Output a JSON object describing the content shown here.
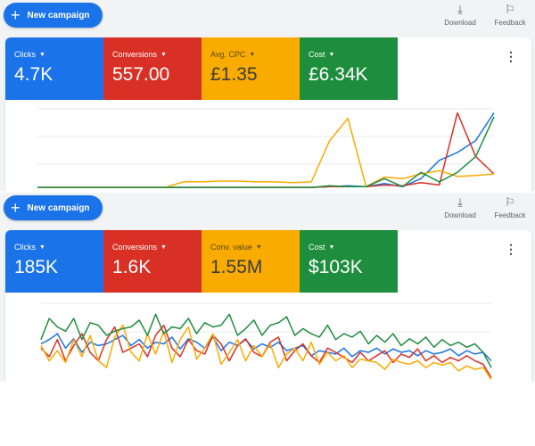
{
  "panels": [
    {
      "new_campaign": "New campaign",
      "download": "Download",
      "feedback": "Feedback",
      "metrics": [
        {
          "label": "Clicks",
          "value": "4.7K",
          "color": "#1a73e8"
        },
        {
          "label": "Conversions",
          "value": "557.00",
          "color": "#d93025"
        },
        {
          "label": "Avg. CPC",
          "value": "£1.35",
          "color": "#f9ab00"
        },
        {
          "label": "Cost",
          "value": "£6.34K",
          "color": "#1e8e3e"
        }
      ],
      "chart_data": {
        "type": "line",
        "x": [
          0,
          1,
          2,
          3,
          4,
          5,
          6,
          7,
          8,
          9,
          10,
          11,
          12,
          13,
          14,
          15,
          16,
          17,
          18,
          19,
          20,
          21,
          22,
          23,
          24,
          25
        ],
        "grid": true,
        "series": [
          {
            "color": "#1a73e8",
            "values": [
              1,
              1,
              1,
              1,
              1,
              1,
              1,
              1,
              1,
              1,
              1,
              1,
              1,
              1,
              1,
              1,
              2,
              3,
              2,
              6,
              2,
              12,
              35,
              45,
              60,
              95
            ]
          },
          {
            "color": "#d93025",
            "values": [
              1,
              1,
              1,
              1,
              1,
              1,
              1,
              1,
              1,
              1,
              1,
              1,
              1,
              1,
              1,
              1,
              2,
              2,
              2,
              4,
              3,
              7,
              4,
              95,
              40,
              18
            ]
          },
          {
            "color": "#f9ab00",
            "values": [
              1,
              1,
              1,
              1,
              1,
              1,
              1,
              1,
              8,
              8,
              9,
              9,
              8,
              8,
              7,
              8,
              60,
              88,
              2,
              14,
              12,
              18,
              22,
              15,
              16,
              18
            ]
          },
          {
            "color": "#1e8e3e",
            "values": [
              1,
              1,
              1,
              1,
              1,
              1,
              1,
              1,
              1,
              1,
              1,
              1,
              1,
              1,
              1,
              1,
              3,
              2,
              2,
              12,
              2,
              20,
              8,
              20,
              40,
              90
            ]
          }
        ]
      }
    },
    {
      "new_campaign": "New campaign",
      "download": "Download",
      "feedback": "Feedback",
      "metrics": [
        {
          "label": "Clicks",
          "value": "185K",
          "color": "#1a73e8"
        },
        {
          "label": "Conversions",
          "value": "1.6K",
          "color": "#d93025"
        },
        {
          "label": "Conv. value",
          "value": "1.55M",
          "color": "#f9ab00"
        },
        {
          "label": "Cost",
          "value": "$103K",
          "color": "#1e8e3e"
        }
      ],
      "chart_data": {
        "type": "line",
        "x": [
          0,
          1,
          2,
          3,
          4,
          5,
          6,
          7,
          8,
          9,
          10,
          11,
          12,
          13,
          14,
          15,
          16,
          17,
          18,
          19,
          20,
          21,
          22,
          23,
          24,
          25,
          26,
          27,
          28,
          29,
          30,
          31,
          32,
          33,
          34,
          35,
          36,
          37,
          38,
          39,
          40,
          41,
          42,
          43,
          44,
          45,
          46,
          47,
          48,
          49,
          50,
          51,
          52,
          53,
          54,
          55
        ],
        "grid": true,
        "series": [
          {
            "color": "#1a73e8",
            "values": [
              50,
              55,
              62,
              45,
              56,
              40,
              52,
              48,
              50,
              55,
              60,
              48,
              55,
              45,
              52,
              50,
              58,
              44,
              56,
              52,
              45,
              58,
              42,
              52,
              48,
              55,
              44,
              50,
              46,
              52,
              42,
              45,
              48,
              36,
              42,
              40,
              38,
              45,
              35,
              42,
              40,
              45,
              38,
              44,
              40,
              42,
              36,
              42,
              38,
              40,
              44,
              36,
              42,
              38,
              40,
              30
            ]
          },
          {
            "color": "#d93025",
            "values": [
              45,
              35,
              55,
              30,
              48,
              62,
              40,
              30,
              55,
              70,
              40,
              45,
              50,
              35,
              60,
              72,
              45,
              35,
              55,
              42,
              38,
              60,
              50,
              30,
              48,
              56,
              40,
              35,
              52,
              58,
              30,
              42,
              50,
              36,
              28,
              45,
              40,
              34,
              28,
              40,
              30,
              36,
              42,
              28,
              38,
              34,
              44,
              30,
              36,
              28,
              34,
              30,
              36,
              30,
              26,
              10
            ]
          },
          {
            "color": "#f9ab00",
            "values": [
              48,
              30,
              42,
              28,
              55,
              35,
              60,
              30,
              22,
              58,
              72,
              40,
              30,
              62,
              38,
              65,
              28,
              55,
              70,
              32,
              45,
              62,
              26,
              40,
              55,
              30,
              48,
              35,
              50,
              22,
              38,
              45,
              30,
              52,
              26,
              40,
              30,
              36,
              22,
              32,
              30,
              28,
              20,
              32,
              28,
              26,
              30,
              22,
              28,
              25,
              28,
              18,
              24,
              20,
              22,
              8
            ]
          },
          {
            "color": "#1e8e3e",
            "values": [
              55,
              80,
              70,
              65,
              80,
              55,
              75,
              72,
              60,
              65,
              68,
              70,
              78,
              60,
              85,
              62,
              70,
              68,
              80,
              62,
              75,
              70,
              72,
              85,
              60,
              68,
              78,
              60,
              72,
              75,
              82,
              60,
              68,
              62,
              58,
              72,
              55,
              62,
              58,
              65,
              50,
              60,
              52,
              62,
              48,
              56,
              50,
              58,
              46,
              55,
              48,
              52,
              46,
              50,
              40,
              22
            ]
          }
        ]
      }
    }
  ]
}
